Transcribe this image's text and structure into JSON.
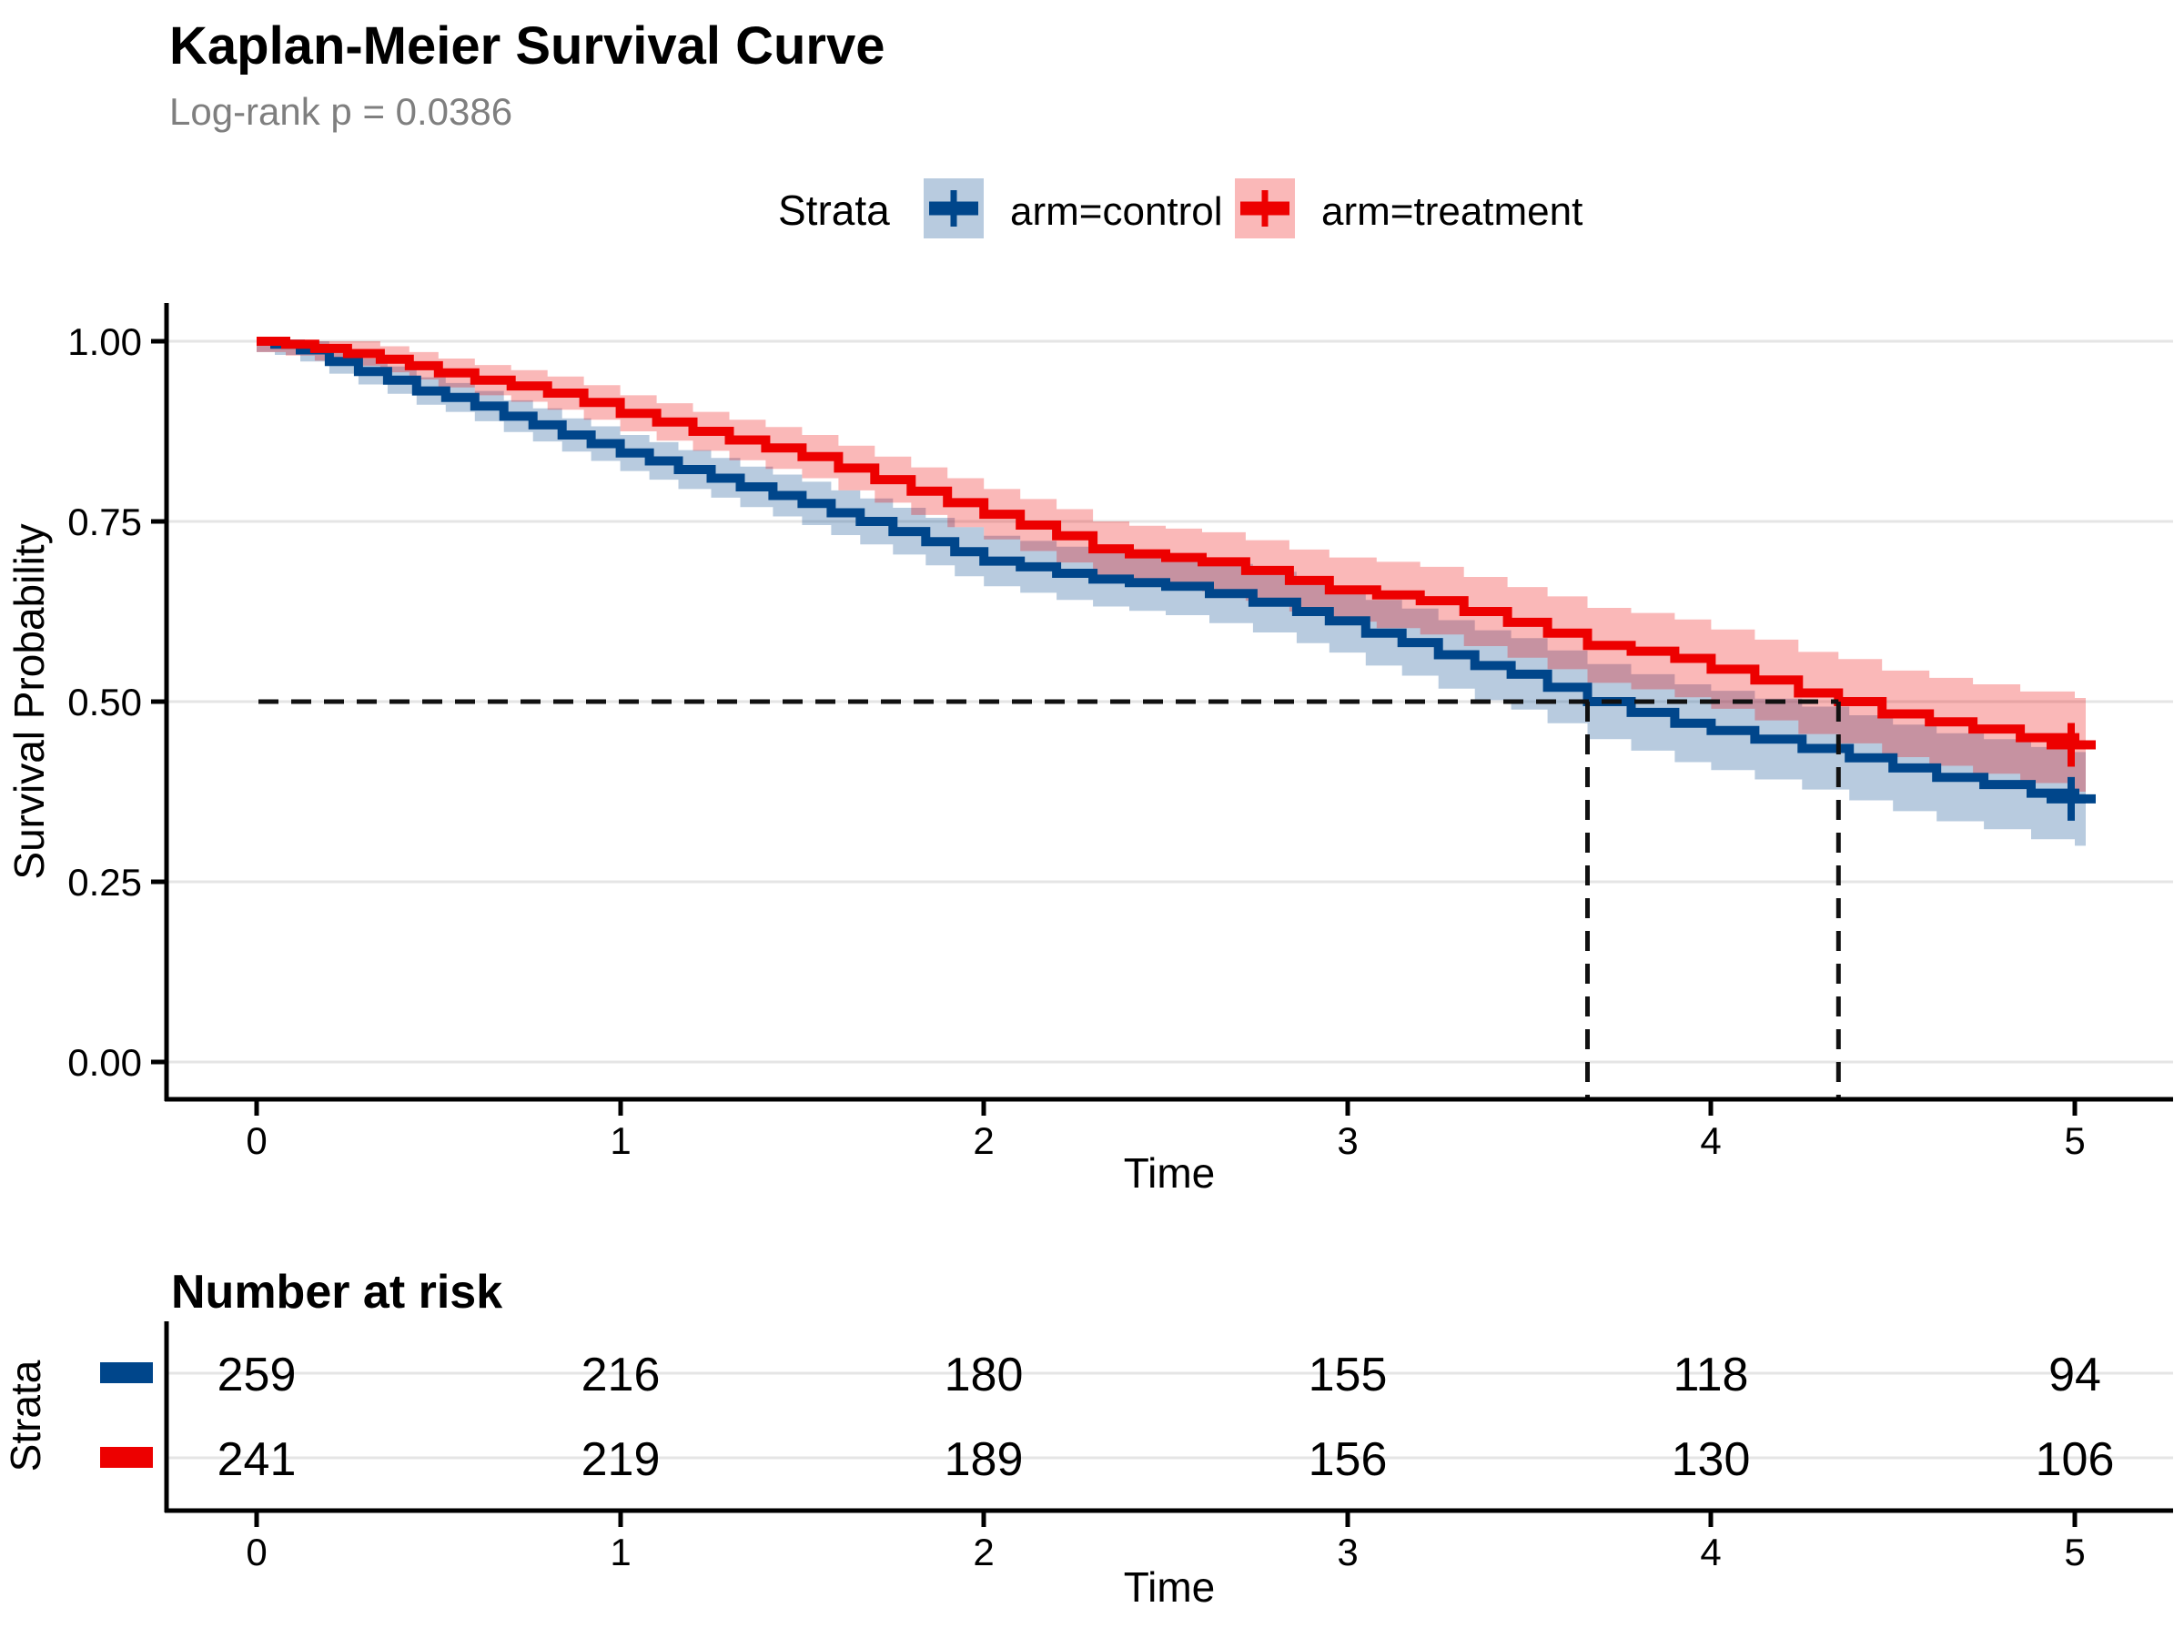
{
  "header": {
    "title": "Kaplan-Meier Survival Curve",
    "subtitle": "Log-rank p = 0.0386"
  },
  "legend": {
    "title": "Strata",
    "items": [
      {
        "label": "arm=control",
        "color": "#00468B"
      },
      {
        "label": "arm=treatment",
        "color": "#ED0000"
      }
    ]
  },
  "axes": {
    "y_label": "Survival Probability",
    "x_label": "Time",
    "y_ticks": [
      "1.00",
      "0.75",
      "0.50",
      "0.25",
      "0.00"
    ],
    "x_ticks": [
      "0",
      "1",
      "2",
      "3",
      "4",
      "5"
    ]
  },
  "colors": {
    "control": "#00468B",
    "treatment": "#ED0000",
    "band_opacity": 0.28,
    "subtitle_gray": "#7f7f7f",
    "gridline": "#e5e5e5"
  },
  "chart_data": {
    "type": "line",
    "subtype": "kaplan-meier-step",
    "title": "Kaplan-Meier Survival Curve",
    "subtitle": "Log-rank p = 0.0386",
    "xlabel": "Time",
    "ylabel": "Survival Probability",
    "xlim": [
      0,
      5
    ],
    "ylim": [
      0,
      1
    ],
    "grid": "horizontal-only",
    "legend_position": "top",
    "median_reference_level": 0.5,
    "medians": {
      "control": 3.66,
      "treatment": 4.35
    },
    "point_format": [
      "time",
      "survival",
      "ci_lower",
      "ci_upper"
    ],
    "series": [
      {
        "name": "arm=control",
        "color": "#00468B",
        "censored": [
          [
            4.99,
            0.365
          ]
        ],
        "points": [
          [
            0,
            1,
            0.985,
            1
          ],
          [
            0.05,
            0.996,
            0.981,
            1
          ],
          [
            0.12,
            0.988,
            0.972,
            1
          ],
          [
            0.2,
            0.972,
            0.955,
            0.989
          ],
          [
            0.28,
            0.958,
            0.94,
            0.976
          ],
          [
            0.36,
            0.946,
            0.927,
            0.965
          ],
          [
            0.44,
            0.931,
            0.912,
            0.95
          ],
          [
            0.52,
            0.922,
            0.902,
            0.942
          ],
          [
            0.6,
            0.91,
            0.889,
            0.931
          ],
          [
            0.68,
            0.896,
            0.874,
            0.918
          ],
          [
            0.76,
            0.884,
            0.861,
            0.907
          ],
          [
            0.84,
            0.87,
            0.847,
            0.893
          ],
          [
            0.92,
            0.858,
            0.834,
            0.882
          ],
          [
            1,
            0.845,
            0.82,
            0.87
          ],
          [
            1.08,
            0.834,
            0.808,
            0.86
          ],
          [
            1.16,
            0.822,
            0.795,
            0.849
          ],
          [
            1.25,
            0.81,
            0.783,
            0.838
          ],
          [
            1.33,
            0.798,
            0.77,
            0.826
          ],
          [
            1.42,
            0.786,
            0.757,
            0.815
          ],
          [
            1.5,
            0.775,
            0.745,
            0.805
          ],
          [
            1.58,
            0.762,
            0.731,
            0.793
          ],
          [
            1.66,
            0.75,
            0.718,
            0.782
          ],
          [
            1.75,
            0.736,
            0.704,
            0.769
          ],
          [
            1.84,
            0.722,
            0.689,
            0.755
          ],
          [
            1.92,
            0.708,
            0.674,
            0.742
          ],
          [
            2,
            0.695,
            0.66,
            0.73
          ],
          [
            2.1,
            0.687,
            0.651,
            0.723
          ],
          [
            2.2,
            0.678,
            0.641,
            0.715
          ],
          [
            2.3,
            0.67,
            0.632,
            0.708
          ],
          [
            2.4,
            0.665,
            0.626,
            0.704
          ],
          [
            2.5,
            0.66,
            0.62,
            0.7
          ],
          [
            2.62,
            0.65,
            0.609,
            0.691
          ],
          [
            2.74,
            0.638,
            0.596,
            0.68
          ],
          [
            2.86,
            0.625,
            0.581,
            0.669
          ],
          [
            2.95,
            0.612,
            0.568,
            0.657
          ],
          [
            3.05,
            0.595,
            0.55,
            0.641
          ],
          [
            3.15,
            0.582,
            0.536,
            0.629
          ],
          [
            3.25,
            0.565,
            0.518,
            0.613
          ],
          [
            3.35,
            0.55,
            0.502,
            0.599
          ],
          [
            3.45,
            0.538,
            0.489,
            0.588
          ],
          [
            3.55,
            0.52,
            0.47,
            0.571
          ],
          [
            3.66,
            0.5,
            0.448,
            0.552
          ],
          [
            3.78,
            0.485,
            0.432,
            0.538
          ],
          [
            3.9,
            0.47,
            0.416,
            0.524
          ],
          [
            4,
            0.46,
            0.405,
            0.515
          ],
          [
            4.12,
            0.448,
            0.392,
            0.504
          ],
          [
            4.25,
            0.435,
            0.378,
            0.493
          ],
          [
            4.38,
            0.422,
            0.363,
            0.481
          ],
          [
            4.5,
            0.408,
            0.348,
            0.468
          ],
          [
            4.62,
            0.395,
            0.334,
            0.456
          ],
          [
            4.75,
            0.385,
            0.323,
            0.448
          ],
          [
            4.88,
            0.373,
            0.309,
            0.437
          ],
          [
            5,
            0.365,
            0.3,
            0.43
          ]
        ]
      },
      {
        "name": "arm=treatment",
        "color": "#ED0000",
        "censored": [
          [
            4.99,
            0.44
          ]
        ],
        "points": [
          [
            0,
            1,
            0.985,
            1
          ],
          [
            0.08,
            0.996,
            0.98,
            1
          ],
          [
            0.16,
            0.99,
            0.973,
            1
          ],
          [
            0.25,
            0.983,
            0.966,
            1
          ],
          [
            0.34,
            0.975,
            0.957,
            0.993
          ],
          [
            0.42,
            0.966,
            0.947,
            0.985
          ],
          [
            0.5,
            0.956,
            0.936,
            0.976
          ],
          [
            0.6,
            0.946,
            0.925,
            0.967
          ],
          [
            0.7,
            0.938,
            0.916,
            0.96
          ],
          [
            0.8,
            0.928,
            0.905,
            0.951
          ],
          [
            0.9,
            0.915,
            0.891,
            0.939
          ],
          [
            1,
            0.9,
            0.875,
            0.925
          ],
          [
            1.1,
            0.888,
            0.862,
            0.914
          ],
          [
            1.2,
            0.875,
            0.848,
            0.902
          ],
          [
            1.3,
            0.863,
            0.835,
            0.891
          ],
          [
            1.4,
            0.852,
            0.823,
            0.881
          ],
          [
            1.5,
            0.84,
            0.81,
            0.87
          ],
          [
            1.6,
            0.824,
            0.793,
            0.855
          ],
          [
            1.7,
            0.808,
            0.776,
            0.84
          ],
          [
            1.8,
            0.792,
            0.759,
            0.825
          ],
          [
            1.9,
            0.776,
            0.742,
            0.81
          ],
          [
            2,
            0.76,
            0.725,
            0.795
          ],
          [
            2.1,
            0.745,
            0.709,
            0.781
          ],
          [
            2.2,
            0.73,
            0.693,
            0.767
          ],
          [
            2.3,
            0.712,
            0.674,
            0.75
          ],
          [
            2.4,
            0.705,
            0.666,
            0.744
          ],
          [
            2.5,
            0.7,
            0.66,
            0.74
          ],
          [
            2.6,
            0.694,
            0.653,
            0.735
          ],
          [
            2.72,
            0.682,
            0.64,
            0.724
          ],
          [
            2.84,
            0.668,
            0.625,
            0.711
          ],
          [
            2.95,
            0.655,
            0.611,
            0.7
          ],
          [
            3.08,
            0.648,
            0.602,
            0.694
          ],
          [
            3.2,
            0.64,
            0.593,
            0.687
          ],
          [
            3.32,
            0.625,
            0.577,
            0.673
          ],
          [
            3.44,
            0.61,
            0.561,
            0.659
          ],
          [
            3.55,
            0.595,
            0.545,
            0.646
          ],
          [
            3.66,
            0.578,
            0.526,
            0.63
          ],
          [
            3.78,
            0.57,
            0.517,
            0.623
          ],
          [
            3.9,
            0.56,
            0.506,
            0.614
          ],
          [
            4,
            0.545,
            0.49,
            0.6
          ],
          [
            4.12,
            0.53,
            0.474,
            0.586
          ],
          [
            4.24,
            0.512,
            0.455,
            0.569
          ],
          [
            4.35,
            0.5,
            0.442,
            0.559
          ],
          [
            4.47,
            0.483,
            0.423,
            0.543
          ],
          [
            4.6,
            0.472,
            0.411,
            0.533
          ],
          [
            4.72,
            0.462,
            0.4,
            0.524
          ],
          [
            4.85,
            0.45,
            0.387,
            0.514
          ],
          [
            5,
            0.44,
            0.375,
            0.505
          ]
        ]
      }
    ]
  },
  "risk_table": {
    "title": "Number at risk",
    "y_label": "Strata",
    "x_label": "Time",
    "x_ticks": [
      "0",
      "1",
      "2",
      "3",
      "4",
      "5"
    ],
    "times": [
      0,
      1,
      2,
      3,
      4,
      5
    ],
    "rows": [
      {
        "name": "arm=control",
        "color": "#00468B",
        "values": [
          "259",
          "216",
          "180",
          "155",
          "118",
          "94"
        ]
      },
      {
        "name": "arm=treatment",
        "color": "#ED0000",
        "values": [
          "241",
          "219",
          "189",
          "156",
          "130",
          "106"
        ]
      }
    ]
  }
}
